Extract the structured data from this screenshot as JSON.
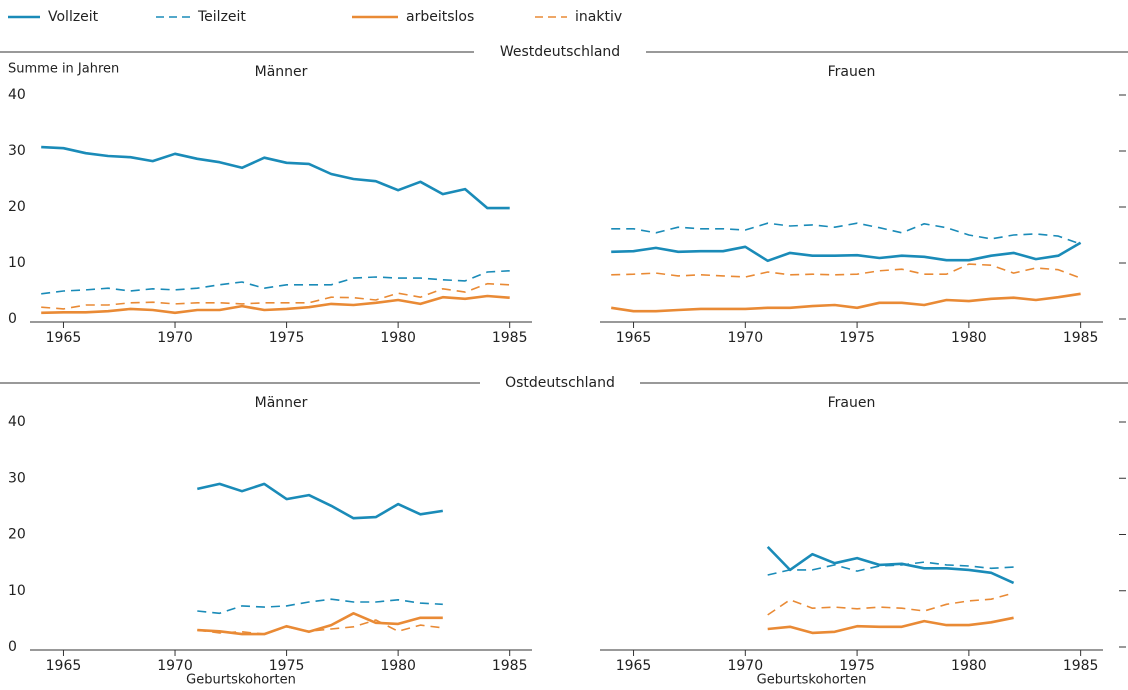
{
  "sections": [
    "Westdeutschland",
    "Ostdeutschland"
  ],
  "chart_data": [
    {
      "type": "line",
      "title": "Männer",
      "y_label": "Summe in Jahren",
      "x": [
        1964,
        1965,
        1966,
        1967,
        1968,
        1969,
        1970,
        1971,
        1972,
        1973,
        1974,
        1975,
        1976,
        1977,
        1978,
        1979,
        1980,
        1981,
        1982,
        1983,
        1984,
        1985
      ],
      "xlim": [
        1963.5,
        1986
      ],
      "xticks": [
        1965,
        1970,
        1975,
        1980,
        1985
      ],
      "ylim": [
        0,
        40
      ],
      "yticks": [
        0,
        10,
        20,
        30,
        40
      ],
      "series": [
        {
          "name": "Vollzeit",
          "color": "#1a8bb8",
          "dashed": false,
          "values": [
            30.7,
            30.5,
            29.6,
            29.1,
            28.9,
            28.2,
            29.5,
            28.6,
            28.0,
            27.0,
            28.8,
            27.9,
            27.7,
            25.9,
            25.0,
            24.6,
            23.0,
            24.5,
            22.3,
            23.2,
            19.8,
            19.8
          ]
        },
        {
          "name": "Teilzeit",
          "color": "#1a8bb8",
          "dashed": true,
          "values": [
            4.5,
            5.0,
            5.2,
            5.5,
            5.0,
            5.4,
            5.2,
            5.5,
            6.1,
            6.6,
            5.5,
            6.1,
            6.1,
            6.1,
            7.3,
            7.5,
            7.3,
            7.3,
            7.0,
            6.8,
            8.4,
            8.6
          ]
        },
        {
          "name": "arbeitslos",
          "color": "#e98a35",
          "dashed": false,
          "values": [
            1.1,
            1.2,
            1.2,
            1.4,
            1.8,
            1.6,
            1.1,
            1.6,
            1.6,
            2.3,
            1.6,
            1.8,
            2.1,
            2.7,
            2.5,
            2.9,
            3.4,
            2.7,
            3.9,
            3.6,
            4.1,
            3.8
          ]
        },
        {
          "name": "inaktiv",
          "color": "#e98a35",
          "dashed": true,
          "values": [
            2.1,
            1.8,
            2.5,
            2.5,
            2.9,
            3.0,
            2.7,
            2.9,
            2.9,
            2.7,
            2.9,
            2.9,
            2.9,
            3.9,
            3.8,
            3.4,
            4.6,
            3.9,
            5.4,
            4.8,
            6.3,
            6.1
          ]
        }
      ]
    },
    {
      "type": "line",
      "title": "Frauen",
      "x": [
        1964,
        1965,
        1966,
        1967,
        1968,
        1969,
        1970,
        1971,
        1972,
        1973,
        1974,
        1975,
        1976,
        1977,
        1978,
        1979,
        1980,
        1981,
        1982,
        1983,
        1984,
        1985
      ],
      "xlim": [
        1963.5,
        1986
      ],
      "xticks": [
        1965,
        1970,
        1975,
        1980,
        1985
      ],
      "ylim": [
        0,
        40
      ],
      "yticks": [
        0,
        10,
        20,
        30,
        40
      ],
      "series": [
        {
          "name": "Vollzeit",
          "color": "#1a8bb8",
          "dashed": false,
          "values": [
            12.0,
            12.1,
            12.7,
            12.0,
            12.1,
            12.1,
            12.9,
            10.4,
            11.8,
            11.3,
            11.3,
            11.4,
            10.9,
            11.3,
            11.1,
            10.5,
            10.5,
            11.3,
            11.8,
            10.7,
            11.3,
            13.6
          ]
        },
        {
          "name": "Teilzeit",
          "color": "#1a8bb8",
          "dashed": true,
          "values": [
            16.1,
            16.1,
            15.4,
            16.4,
            16.1,
            16.1,
            15.9,
            17.1,
            16.6,
            16.8,
            16.4,
            17.1,
            16.3,
            15.4,
            17.0,
            16.3,
            15.0,
            14.3,
            15.0,
            15.2,
            14.8,
            13.4
          ]
        },
        {
          "name": "arbeitslos",
          "color": "#e98a35",
          "dashed": false,
          "values": [
            2.0,
            1.4,
            1.4,
            1.6,
            1.8,
            1.8,
            1.8,
            2.0,
            2.0,
            2.3,
            2.5,
            2.0,
            2.9,
            2.9,
            2.5,
            3.4,
            3.2,
            3.6,
            3.8,
            3.4,
            3.9,
            4.5
          ]
        },
        {
          "name": "inaktiv",
          "color": "#e98a35",
          "dashed": true,
          "values": [
            7.9,
            8.0,
            8.2,
            7.7,
            7.9,
            7.7,
            7.5,
            8.4,
            7.9,
            8.0,
            7.9,
            8.0,
            8.6,
            8.9,
            8.0,
            8.0,
            9.8,
            9.6,
            8.2,
            9.1,
            8.8,
            7.3
          ]
        }
      ]
    },
    {
      "type": "line",
      "title": "Männer",
      "x_label": "Geburtskohorten",
      "x": [
        1971,
        1972,
        1973,
        1974,
        1975,
        1976,
        1977,
        1978,
        1979,
        1980,
        1981,
        1982
      ],
      "xlim": [
        1963.5,
        1986
      ],
      "xticks": [
        1965,
        1970,
        1975,
        1980,
        1985
      ],
      "ylim": [
        0,
        40
      ],
      "yticks": [
        0,
        10,
        20,
        30,
        40
      ],
      "series": [
        {
          "name": "Vollzeit",
          "color": "#1a8bb8",
          "dashed": false,
          "values": [
            28.1,
            29.0,
            27.7,
            29.0,
            26.3,
            27.0,
            25.1,
            22.9,
            23.1,
            25.4,
            23.6,
            24.2
          ]
        },
        {
          "name": "Teilzeit",
          "color": "#1a8bb8",
          "dashed": true,
          "values": [
            6.4,
            6.0,
            7.3,
            7.1,
            7.3,
            8.0,
            8.5,
            8.0,
            8.0,
            8.4,
            7.8,
            7.6
          ]
        },
        {
          "name": "arbeitslos",
          "color": "#e98a35",
          "dashed": false,
          "values": [
            3.0,
            2.8,
            2.3,
            2.3,
            3.7,
            2.7,
            3.9,
            6.0,
            4.3,
            4.1,
            5.2,
            5.2
          ]
        },
        {
          "name": "inaktiv",
          "color": "#e98a35",
          "dashed": true,
          "values": [
            3.0,
            2.5,
            2.7,
            2.3,
            3.6,
            2.8,
            3.2,
            3.6,
            4.8,
            2.8,
            3.9,
            3.4
          ]
        }
      ]
    },
    {
      "type": "line",
      "title": "Frauen",
      "x_label": "Geburtskohorten",
      "x": [
        1971,
        1972,
        1973,
        1974,
        1975,
        1976,
        1977,
        1978,
        1979,
        1980,
        1981,
        1982
      ],
      "xlim": [
        1963.5,
        1986
      ],
      "xticks": [
        1965,
        1970,
        1975,
        1980,
        1985
      ],
      "ylim": [
        0,
        40
      ],
      "yticks": [
        0,
        10,
        20,
        30,
        40
      ],
      "series": [
        {
          "name": "Vollzeit",
          "color": "#1a8bb8",
          "dashed": false,
          "values": [
            17.8,
            13.7,
            16.5,
            14.9,
            15.8,
            14.6,
            14.8,
            14.0,
            14.0,
            13.7,
            13.2,
            11.4
          ]
        },
        {
          "name": "Teilzeit",
          "color": "#1a8bb8",
          "dashed": true,
          "values": [
            12.8,
            13.7,
            13.7,
            14.6,
            13.5,
            14.4,
            14.6,
            15.1,
            14.6,
            14.4,
            14.0,
            14.2
          ]
        },
        {
          "name": "arbeitslos",
          "color": "#e98a35",
          "dashed": false,
          "values": [
            3.2,
            3.6,
            2.5,
            2.7,
            3.7,
            3.6,
            3.6,
            4.6,
            3.9,
            3.9,
            4.4,
            5.2
          ]
        },
        {
          "name": "inaktiv",
          "color": "#e98a35",
          "dashed": true,
          "values": [
            5.7,
            8.4,
            6.9,
            7.1,
            6.8,
            7.1,
            6.9,
            6.4,
            7.6,
            8.2,
            8.5,
            9.6
          ]
        }
      ]
    }
  ]
}
